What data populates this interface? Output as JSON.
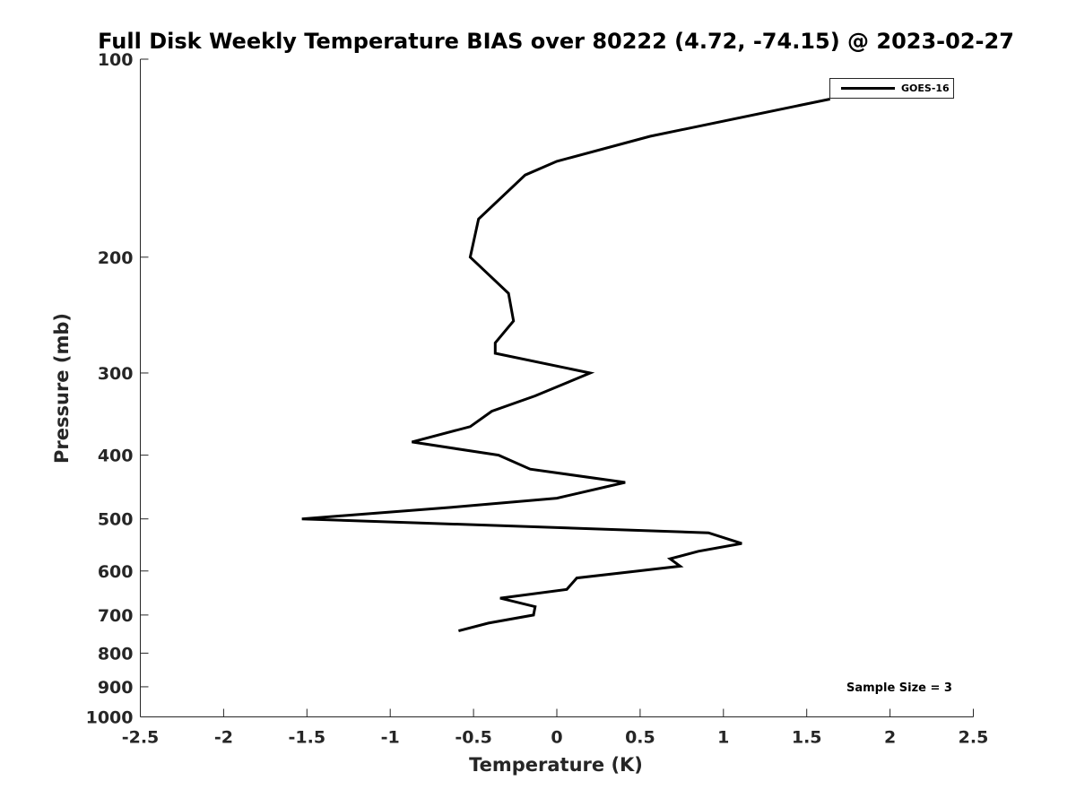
{
  "chart_data": {
    "type": "line",
    "title": "Full Disk Weekly Temperature BIAS over 80222 (4.72, -74.15) @ 2023-02-27",
    "xlabel": "Temperature (K)",
    "ylabel": "Pressure (mb)",
    "xlim": [
      -2.5,
      2.5
    ],
    "ylim": [
      1000,
      100
    ],
    "y_scale": "log",
    "y_reversed": true,
    "grid": false,
    "legend_position": "top-right",
    "x_ticks": [
      "-2.5",
      "-2",
      "-1.5",
      "-1",
      "-0.5",
      "0",
      "0.5",
      "1",
      "1.5",
      "2",
      "2.5"
    ],
    "y_ticks": [
      "100",
      "200",
      "300",
      "400",
      "500",
      "600",
      "700",
      "800",
      "900",
      "1000"
    ],
    "series": [
      {
        "name": "GOES-16",
        "color": "#000000",
        "x": [
          1.64,
          0.56,
          0.0,
          -0.19,
          -0.47,
          -0.52,
          -0.29,
          -0.26,
          -0.37,
          -0.37,
          0.2,
          -0.13,
          -0.39,
          -0.52,
          -0.87,
          -0.35,
          -0.16,
          0.41,
          0.0,
          -0.63,
          -1.53,
          0.91,
          1.11,
          0.85,
          0.68,
          0.74,
          0.12,
          0.06,
          -0.34,
          -0.13,
          -0.14,
          -0.41,
          -0.59
        ],
        "y": [
          115,
          131,
          143,
          150,
          175,
          200,
          227,
          250,
          270,
          280,
          300,
          325,
          343,
          362,
          382,
          400,
          420,
          440,
          465,
          480,
          500,
          525,
          545,
          560,
          575,
          590,
          615,
          640,
          660,
          680,
          700,
          720,
          740
        ]
      }
    ],
    "annotations": [
      {
        "text": "Sample Size = 3",
        "position": "bottom-right"
      }
    ]
  }
}
